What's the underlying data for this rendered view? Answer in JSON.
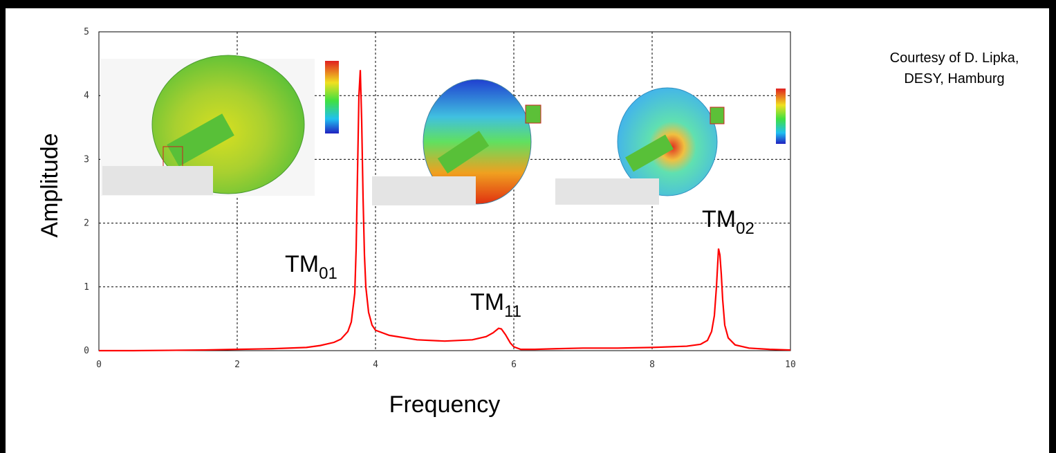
{
  "chart_data": {
    "type": "line",
    "x_label": "Frequency",
    "y_label": "Amplitude",
    "color": "#ff0000",
    "xlim": [
      0,
      10
    ],
    "ylim": [
      0,
      5
    ],
    "xticks": [
      0,
      2,
      4,
      6,
      8,
      10
    ],
    "yticks": [
      0,
      1,
      2,
      3,
      4,
      5
    ],
    "grid": true,
    "x": [
      0,
      0.5,
      1,
      1.5,
      2,
      2.5,
      3,
      3.2,
      3.4,
      3.5,
      3.6,
      3.65,
      3.7,
      3.72,
      3.74,
      3.76,
      3.78,
      3.8,
      3.82,
      3.84,
      3.86,
      3.9,
      3.95,
      4.0,
      4.2,
      4.6,
      5.0,
      5.4,
      5.6,
      5.7,
      5.78,
      5.82,
      5.88,
      5.95,
      6.0,
      6.1,
      6.3,
      6.6,
      7.0,
      7.5,
      8.0,
      8.5,
      8.7,
      8.8,
      8.86,
      8.9,
      8.93,
      8.96,
      8.98,
      9.0,
      9.02,
      9.05,
      9.1,
      9.2,
      9.4,
      9.7,
      10
    ],
    "values": [
      0,
      0,
      0.005,
      0.01,
      0.02,
      0.03,
      0.05,
      0.08,
      0.13,
      0.18,
      0.3,
      0.45,
      0.9,
      1.6,
      2.8,
      4.0,
      4.4,
      3.6,
      2.4,
      1.5,
      1.0,
      0.6,
      0.4,
      0.32,
      0.24,
      0.17,
      0.15,
      0.17,
      0.22,
      0.28,
      0.35,
      0.34,
      0.25,
      0.12,
      0.06,
      0.02,
      0.02,
      0.03,
      0.04,
      0.04,
      0.05,
      0.07,
      0.1,
      0.16,
      0.3,
      0.55,
      1.0,
      1.6,
      1.5,
      1.2,
      0.8,
      0.4,
      0.2,
      0.09,
      0.04,
      0.02,
      0.01
    ],
    "annotations": [
      {
        "text": "TM",
        "sub": "01"
      },
      {
        "text": "TM",
        "sub": "11"
      },
      {
        "text": "TM",
        "sub": "02"
      }
    ],
    "credit": [
      "Courtesy of D. Lipka,",
      "DESY, Hamburg"
    ]
  }
}
